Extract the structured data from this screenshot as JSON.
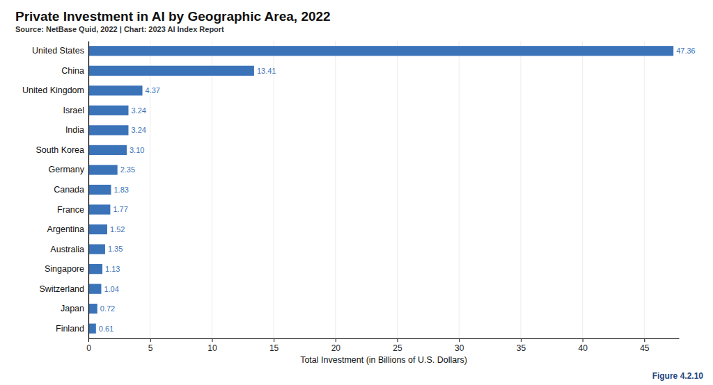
{
  "chart_data": {
    "type": "bar",
    "orientation": "horizontal",
    "title": "Private Investment in AI by Geographic Area, 2022",
    "subtitle": "Source: NetBase Quid, 2022 | Chart: 2023 AI Index Report",
    "xlabel": "Total Investment (in Billions of U.S. Dollars)",
    "annotations": [
      "Figure 4.2.10"
    ],
    "categories": [
      "United States",
      "China",
      "United Kingdom",
      "Israel",
      "India",
      "South Korea",
      "Germany",
      "Canada",
      "France",
      "Argentina",
      "Australia",
      "Singapore",
      "Switzerland",
      "Japan",
      "Finland"
    ],
    "values": [
      47.36,
      13.41,
      4.37,
      3.24,
      3.24,
      3.1,
      2.35,
      1.83,
      1.77,
      1.52,
      1.35,
      1.13,
      1.04,
      0.72,
      0.61
    ],
    "value_labels": [
      "47.36",
      "13.41",
      "4.37",
      "3.24",
      "3.24",
      "3.10",
      "2.35",
      "1.83",
      "1.77",
      "1.52",
      "1.35",
      "1.13",
      "1.04",
      "0.72",
      "0.61"
    ],
    "color": "#3b73b9",
    "xlim": [
      0,
      47.8
    ],
    "xticks": [
      0,
      5,
      10,
      15,
      20,
      25,
      30,
      35,
      40,
      45
    ],
    "grid": true,
    "data_labels": true
  }
}
